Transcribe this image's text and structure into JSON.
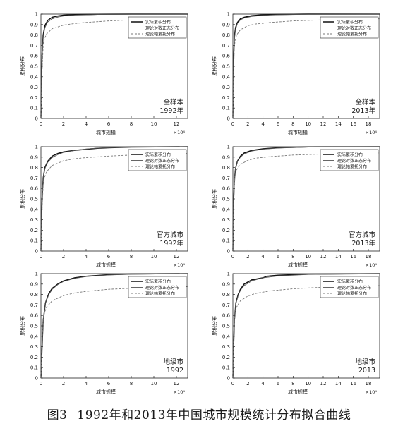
{
  "caption": {
    "number": "图3",
    "text": "1992年和2013年中国城市规模统计分布拟合曲线"
  },
  "colors": {
    "actual": "#111111",
    "lognormal": "#555555",
    "pareto": "#777777",
    "axis": "#222222"
  },
  "chart_data": [
    {
      "type": "line",
      "xlabel": "城市规模",
      "ylabel": "累积分布",
      "x_exponent_label": "×10⁴",
      "xlim": [
        0,
        13
      ],
      "ylim": [
        0,
        1
      ],
      "xticks": [
        "0",
        "2",
        "4",
        "6",
        "8",
        "10",
        "12"
      ],
      "xtick_values": [
        0,
        2,
        4,
        6,
        8,
        10,
        12
      ],
      "yticks": [
        "0",
        "0.1",
        "0.2",
        "0.3",
        "0.4",
        "0.5",
        "0.6",
        "0.7",
        "0.8",
        "0.9",
        "1"
      ],
      "annotation": [
        "全样本",
        "1992年"
      ],
      "legend_position": "top-right",
      "series": [
        {
          "name": "实际累积分布",
          "style": "solid",
          "x": [
            0,
            0.05,
            0.1,
            0.2,
            0.35,
            0.6,
            1,
            1.5,
            2,
            3,
            5,
            8,
            13
          ],
          "values": [
            0,
            0.3,
            0.62,
            0.8,
            0.89,
            0.94,
            0.97,
            0.982,
            0.99,
            0.995,
            0.998,
            1,
            1
          ]
        },
        {
          "name": "理论对数正态分布",
          "style": "solid",
          "x": [
            0,
            0.05,
            0.1,
            0.2,
            0.35,
            0.6,
            1,
            1.5,
            2,
            3,
            5,
            8,
            13
          ],
          "values": [
            0,
            0.35,
            0.6,
            0.78,
            0.87,
            0.925,
            0.955,
            0.972,
            0.982,
            0.99,
            0.996,
            0.999,
            1
          ]
        },
        {
          "name": "理论帕累托分布",
          "style": "dashed",
          "x": [
            0,
            0.1,
            0.2,
            0.3,
            0.5,
            1,
            2,
            3,
            4,
            6,
            8,
            10,
            13
          ],
          "values": [
            0,
            0.45,
            0.7,
            0.76,
            0.81,
            0.86,
            0.895,
            0.91,
            0.92,
            0.935,
            0.945,
            0.95,
            0.955
          ]
        }
      ]
    },
    {
      "type": "line",
      "xlabel": "城市规模",
      "ylabel": "累积分布",
      "x_exponent_label": "×10⁴",
      "xlim": [
        0,
        19.5
      ],
      "ylim": [
        0,
        1
      ],
      "xticks": [
        "0",
        "2",
        "4",
        "6",
        "8",
        "10",
        "12",
        "14",
        "16",
        "18"
      ],
      "xtick_values": [
        0,
        2,
        4,
        6,
        8,
        10,
        12,
        14,
        16,
        18
      ],
      "yticks": [
        "0",
        "0.1",
        "0.2",
        "0.3",
        "0.4",
        "0.5",
        "0.6",
        "0.7",
        "0.8",
        "0.9",
        "1"
      ],
      "annotation": [
        "全样本",
        "2013年"
      ],
      "legend_position": "top-right",
      "series": [
        {
          "name": "实际累积分布",
          "style": "solid",
          "x": [
            0,
            0.05,
            0.1,
            0.2,
            0.35,
            0.6,
            1,
            1.5,
            2.5,
            4,
            6,
            10,
            19.5
          ],
          "values": [
            0,
            0.28,
            0.58,
            0.78,
            0.87,
            0.92,
            0.955,
            0.97,
            0.985,
            0.993,
            0.997,
            1,
            1
          ]
        },
        {
          "name": "理论对数正态分布",
          "style": "solid",
          "x": [
            0,
            0.05,
            0.1,
            0.2,
            0.35,
            0.6,
            1,
            1.5,
            2.5,
            4,
            6,
            10,
            19.5
          ],
          "values": [
            0,
            0.32,
            0.57,
            0.76,
            0.85,
            0.91,
            0.945,
            0.962,
            0.978,
            0.988,
            0.994,
            0.998,
            1
          ]
        },
        {
          "name": "理论帕累托分布",
          "style": "dashed",
          "x": [
            0,
            0.1,
            0.2,
            0.3,
            0.5,
            1,
            2,
            3,
            5,
            8,
            12,
            16,
            19.5
          ],
          "values": [
            0,
            0.45,
            0.68,
            0.75,
            0.8,
            0.85,
            0.89,
            0.905,
            0.92,
            0.935,
            0.945,
            0.95,
            0.955
          ]
        }
      ]
    },
    {
      "type": "line",
      "xlabel": "城市规模",
      "ylabel": "累积分布",
      "x_exponent_label": "×10⁴",
      "xlim": [
        0,
        13
      ],
      "ylim": [
        0,
        1
      ],
      "xticks": [
        "0",
        "2",
        "4",
        "6",
        "8",
        "10",
        "12"
      ],
      "xtick_values": [
        0,
        2,
        4,
        6,
        8,
        10,
        12
      ],
      "yticks": [
        "0",
        "0.1",
        "0.2",
        "0.3",
        "0.4",
        "0.5",
        "0.6",
        "0.7",
        "0.8",
        "0.9",
        "1"
      ],
      "annotation": [
        "官方城市",
        "1992年"
      ],
      "legend_position": "top-right",
      "series": [
        {
          "name": "实际累积分布",
          "style": "solid",
          "x": [
            0,
            0.05,
            0.1,
            0.2,
            0.35,
            0.6,
            1,
            1.5,
            2,
            3,
            4,
            5,
            6,
            8,
            13
          ],
          "values": [
            0,
            0.25,
            0.5,
            0.7,
            0.8,
            0.86,
            0.91,
            0.935,
            0.95,
            0.965,
            0.975,
            0.985,
            0.99,
            0.997,
            1
          ]
        },
        {
          "name": "理论对数正态分布",
          "style": "solid",
          "x": [
            0,
            0.05,
            0.1,
            0.2,
            0.35,
            0.6,
            1,
            1.5,
            2,
            3,
            4,
            5,
            6,
            8,
            13
          ],
          "values": [
            0,
            0.28,
            0.52,
            0.7,
            0.79,
            0.85,
            0.895,
            0.925,
            0.945,
            0.965,
            0.978,
            0.986,
            0.991,
            0.997,
            1
          ]
        },
        {
          "name": "理论帕累托分布",
          "style": "dashed",
          "x": [
            0,
            0.1,
            0.2,
            0.3,
            0.5,
            1,
            2,
            3,
            4,
            6,
            8,
            10,
            13
          ],
          "values": [
            0,
            0.4,
            0.63,
            0.7,
            0.76,
            0.82,
            0.865,
            0.885,
            0.895,
            0.91,
            0.92,
            0.928,
            0.935
          ]
        }
      ]
    },
    {
      "type": "line",
      "xlabel": "城市规模",
      "ylabel": "累积分布",
      "x_exponent_label": "×10⁴",
      "xlim": [
        0,
        19.5
      ],
      "ylim": [
        0,
        1
      ],
      "xticks": [
        "0",
        "2",
        "4",
        "6",
        "8",
        "10",
        "12",
        "14",
        "16",
        "18"
      ],
      "xtick_values": [
        0,
        2,
        4,
        6,
        8,
        10,
        12,
        14,
        16,
        18
      ],
      "yticks": [
        "0",
        "0.1",
        "0.2",
        "0.3",
        "0.4",
        "0.5",
        "0.6",
        "0.7",
        "0.8",
        "0.9",
        "1"
      ],
      "annotation": [
        "官方城市",
        "2013年"
      ],
      "legend_position": "top-right",
      "series": [
        {
          "name": "实际累积分布",
          "style": "solid",
          "x": [
            0,
            0.05,
            0.1,
            0.2,
            0.35,
            0.6,
            1,
            1.5,
            2.5,
            4,
            6,
            10,
            19.5
          ],
          "values": [
            0,
            0.22,
            0.48,
            0.68,
            0.79,
            0.86,
            0.91,
            0.94,
            0.965,
            0.98,
            0.99,
            0.998,
            1
          ]
        },
        {
          "name": "理论对数正态分布",
          "style": "solid",
          "x": [
            0,
            0.05,
            0.1,
            0.2,
            0.35,
            0.6,
            1,
            1.5,
            2.5,
            4,
            6,
            10,
            19.5
          ],
          "values": [
            0,
            0.26,
            0.5,
            0.69,
            0.79,
            0.855,
            0.9,
            0.93,
            0.958,
            0.976,
            0.987,
            0.996,
            1
          ]
        },
        {
          "name": "理论帕累托分布",
          "style": "dashed",
          "x": [
            0,
            0.1,
            0.2,
            0.3,
            0.5,
            1,
            2,
            3,
            5,
            8,
            12,
            16,
            19.5
          ],
          "values": [
            0,
            0.42,
            0.64,
            0.72,
            0.78,
            0.83,
            0.87,
            0.89,
            0.905,
            0.92,
            0.93,
            0.935,
            0.94
          ]
        }
      ]
    },
    {
      "type": "line",
      "xlabel": "城市规模",
      "ylabel": "累积分布",
      "x_exponent_label": "×10⁴",
      "xlim": [
        0,
        13
      ],
      "ylim": [
        0,
        1
      ],
      "xticks": [
        "0",
        "2",
        "4",
        "6",
        "8",
        "10",
        "12"
      ],
      "xtick_values": [
        0,
        2,
        4,
        6,
        8,
        10,
        12
      ],
      "yticks": [
        "0",
        "0.1",
        "0.2",
        "0.3",
        "0.4",
        "0.5",
        "0.6",
        "0.7",
        "0.8",
        "0.9",
        "1"
      ],
      "annotation": [
        "地级市",
        "1992"
      ],
      "legend_position": "top-right",
      "series": [
        {
          "name": "实际累积分布",
          "style": "solid",
          "x": [
            0,
            0.05,
            0.1,
            0.2,
            0.4,
            0.7,
            1,
            1.5,
            2,
            3,
            4,
            6,
            8,
            13
          ],
          "values": [
            0,
            0.12,
            0.3,
            0.55,
            0.72,
            0.81,
            0.86,
            0.9,
            0.93,
            0.96,
            0.975,
            0.99,
            0.997,
            1
          ]
        },
        {
          "name": "理论对数正态分布",
          "style": "solid",
          "x": [
            0,
            0.05,
            0.1,
            0.2,
            0.4,
            0.7,
            1,
            1.5,
            2,
            3,
            4,
            6,
            8,
            13
          ],
          "values": [
            0,
            0.15,
            0.33,
            0.56,
            0.72,
            0.8,
            0.85,
            0.895,
            0.925,
            0.955,
            0.972,
            0.987,
            0.994,
            1
          ]
        },
        {
          "name": "理论帕累托分布",
          "style": "dashed",
          "x": [
            0,
            0.1,
            0.2,
            0.3,
            0.5,
            1,
            2,
            3,
            4,
            6,
            8,
            10,
            13
          ],
          "values": [
            0,
            0.35,
            0.55,
            0.62,
            0.68,
            0.74,
            0.79,
            0.815,
            0.83,
            0.85,
            0.86,
            0.868,
            0.875
          ]
        }
      ]
    },
    {
      "type": "line",
      "xlabel": "城市规模",
      "ylabel": "累积分布",
      "x_exponent_label": "×10⁴",
      "xlim": [
        0,
        19.5
      ],
      "ylim": [
        0,
        1
      ],
      "xticks": [
        "0",
        "2",
        "4",
        "6",
        "8",
        "10",
        "12",
        "14",
        "16",
        "18"
      ],
      "xtick_values": [
        0,
        2,
        4,
        6,
        8,
        10,
        12,
        14,
        16,
        18
      ],
      "yticks": [
        "0",
        "0.1",
        "0.2",
        "0.3",
        "0.4",
        "0.5",
        "0.6",
        "0.7",
        "0.8",
        "0.9",
        "1"
      ],
      "annotation": [
        "地级市",
        "2013"
      ],
      "legend_position": "top-right",
      "series": [
        {
          "name": "实际累积分布",
          "style": "solid",
          "x": [
            0,
            0.05,
            0.1,
            0.2,
            0.4,
            0.7,
            1,
            1.5,
            2.5,
            4,
            4.5,
            6,
            10,
            19.5
          ],
          "values": [
            0,
            0.12,
            0.3,
            0.55,
            0.72,
            0.8,
            0.85,
            0.9,
            0.94,
            0.96,
            0.975,
            0.985,
            0.995,
            1
          ]
        },
        {
          "name": "理论对数正态分布",
          "style": "solid",
          "x": [
            0,
            0.05,
            0.1,
            0.2,
            0.4,
            0.7,
            1,
            1.5,
            2.5,
            4,
            6,
            10,
            19.5
          ],
          "values": [
            0,
            0.14,
            0.32,
            0.55,
            0.71,
            0.79,
            0.84,
            0.885,
            0.93,
            0.96,
            0.978,
            0.992,
            1
          ]
        },
        {
          "name": "理论帕累托分布",
          "style": "dashed",
          "x": [
            0,
            0.1,
            0.2,
            0.3,
            0.5,
            1,
            2,
            3,
            5,
            8,
            12,
            16,
            19.5
          ],
          "values": [
            0,
            0.35,
            0.55,
            0.62,
            0.68,
            0.74,
            0.785,
            0.81,
            0.835,
            0.855,
            0.87,
            0.878,
            0.885
          ]
        }
      ]
    }
  ]
}
